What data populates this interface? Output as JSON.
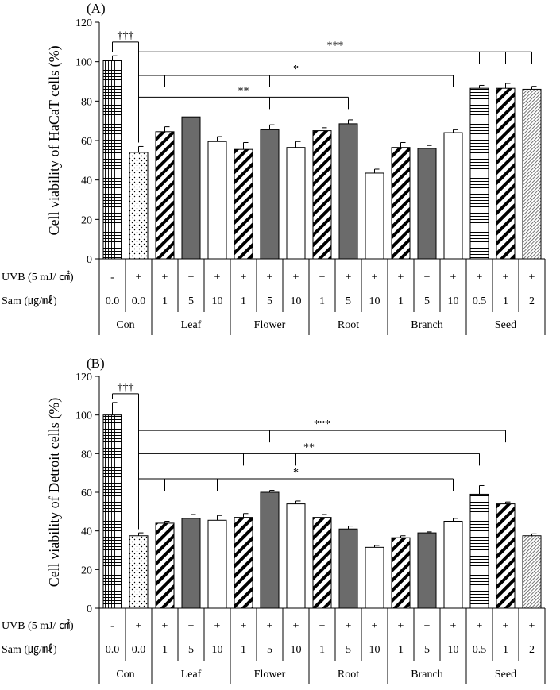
{
  "chart_data": [
    {
      "type": "bar",
      "panel_label": "(A)",
      "ylabel": "Cell viability of HaCaT cells (%)",
      "ylim": [
        0,
        120
      ],
      "yticks": [
        "0",
        "20",
        "40",
        "60",
        "80",
        "100",
        "120"
      ],
      "grid": false,
      "row_labels": {
        "uvb": "UVB (5 mJ/ ㎠)",
        "sam": "Sam (㎍/㎖)"
      },
      "uvb": [
        "-",
        "+",
        "+",
        "+",
        "+",
        "+",
        "+",
        "+",
        "+",
        "+",
        "+",
        "+",
        "+",
        "+",
        "+",
        "+",
        "+"
      ],
      "sam": [
        "0.0",
        "0.0",
        "1",
        "5",
        "10",
        "1",
        "5",
        "10",
        "1",
        "5",
        "10",
        "1",
        "5",
        "10",
        "0.5",
        "1",
        "2"
      ],
      "groups": [
        {
          "label": "Con",
          "count": 2
        },
        {
          "label": "Leaf",
          "count": 3
        },
        {
          "label": "Flower",
          "count": 3
        },
        {
          "label": "Root",
          "count": 3
        },
        {
          "label": "Branch",
          "count": 3
        },
        {
          "label": "Seed",
          "count": 3
        }
      ],
      "values": [
        100.5,
        54,
        64.5,
        72,
        59.5,
        55.5,
        65.5,
        56.5,
        65,
        68.5,
        43.5,
        56.5,
        56,
        64,
        86.5,
        86.5,
        86
      ],
      "errors": [
        2.5,
        3,
        2.5,
        3.5,
        2.5,
        3.5,
        2.5,
        3,
        1.5,
        2,
        2,
        2.5,
        1.5,
        1.5,
        1.5,
        2.5,
        1.5
      ],
      "fills": [
        "grid",
        "dots",
        "diag",
        "dark",
        "white",
        "diag",
        "dark",
        "white",
        "diag",
        "dark",
        "white",
        "diag",
        "dark",
        "white",
        "hlines",
        "diag",
        "fine"
      ],
      "annotations": [
        {
          "label": "†††",
          "span": [
            0,
            1
          ],
          "y": 110
        },
        {
          "label": "***",
          "span": [
            1,
            16
          ],
          "y": 105,
          "ticks": [
            14,
            15,
            16
          ]
        },
        {
          "label": "*",
          "span": [
            1,
            13
          ],
          "y": 93,
          "ticks": [
            2,
            6,
            8
          ]
        },
        {
          "label": "**",
          "span": [
            1,
            9
          ],
          "y": 82,
          "ticks": [
            3,
            6
          ]
        }
      ]
    },
    {
      "type": "bar",
      "panel_label": "(B)",
      "ylabel": "Cell viability of Detroit cells (%)",
      "ylim": [
        0,
        120
      ],
      "yticks": [
        "0",
        "20",
        "40",
        "60",
        "80",
        "100",
        "120"
      ],
      "grid": false,
      "row_labels": {
        "uvb": "UVB (5 mJ/ ㎠)",
        "sam": "Sam (㎍/㎖)"
      },
      "uvb": [
        "-",
        "+",
        "+",
        "+",
        "+",
        "+",
        "+",
        "+",
        "+",
        "+",
        "+",
        "+",
        "+",
        "+",
        "+",
        "+",
        "+"
      ],
      "sam": [
        "0.0",
        "0.0",
        "1",
        "5",
        "10",
        "1",
        "5",
        "10",
        "1",
        "5",
        "10",
        "1",
        "5",
        "10",
        "0.5",
        "1",
        "2"
      ],
      "groups": [
        {
          "label": "Con",
          "count": 2
        },
        {
          "label": "Leaf",
          "count": 3
        },
        {
          "label": "Flower",
          "count": 3
        },
        {
          "label": "Root",
          "count": 3
        },
        {
          "label": "Branch",
          "count": 3
        },
        {
          "label": "Seed",
          "count": 3
        }
      ],
      "values": [
        100,
        37.5,
        44,
        46.5,
        45.5,
        47,
        60,
        54,
        47,
        41,
        31.5,
        36.5,
        39,
        45,
        59,
        54,
        37.5
      ],
      "errors": [
        6.5,
        1.5,
        1,
        2,
        2.5,
        2,
        1,
        1.5,
        1.5,
        1.5,
        1,
        1,
        0.5,
        1.5,
        4.5,
        1,
        1
      ],
      "fills": [
        "grid",
        "dots",
        "diag",
        "dark",
        "white",
        "diag",
        "dark",
        "white",
        "diag",
        "dark",
        "white",
        "diag",
        "dark",
        "white",
        "hlines",
        "diag",
        "fine"
      ],
      "annotations": [
        {
          "label": "†††",
          "span": [
            0,
            1
          ],
          "y": 111
        },
        {
          "label": "***",
          "span": [
            1,
            15
          ],
          "y": 92,
          "ticks": [
            6
          ]
        },
        {
          "label": "**",
          "span": [
            1,
            14
          ],
          "y": 80,
          "ticks": [
            5,
            7,
            8
          ]
        },
        {
          "label": "*",
          "span": [
            1,
            13
          ],
          "y": 67,
          "ticks": [
            2,
            3,
            4
          ]
        }
      ]
    }
  ]
}
